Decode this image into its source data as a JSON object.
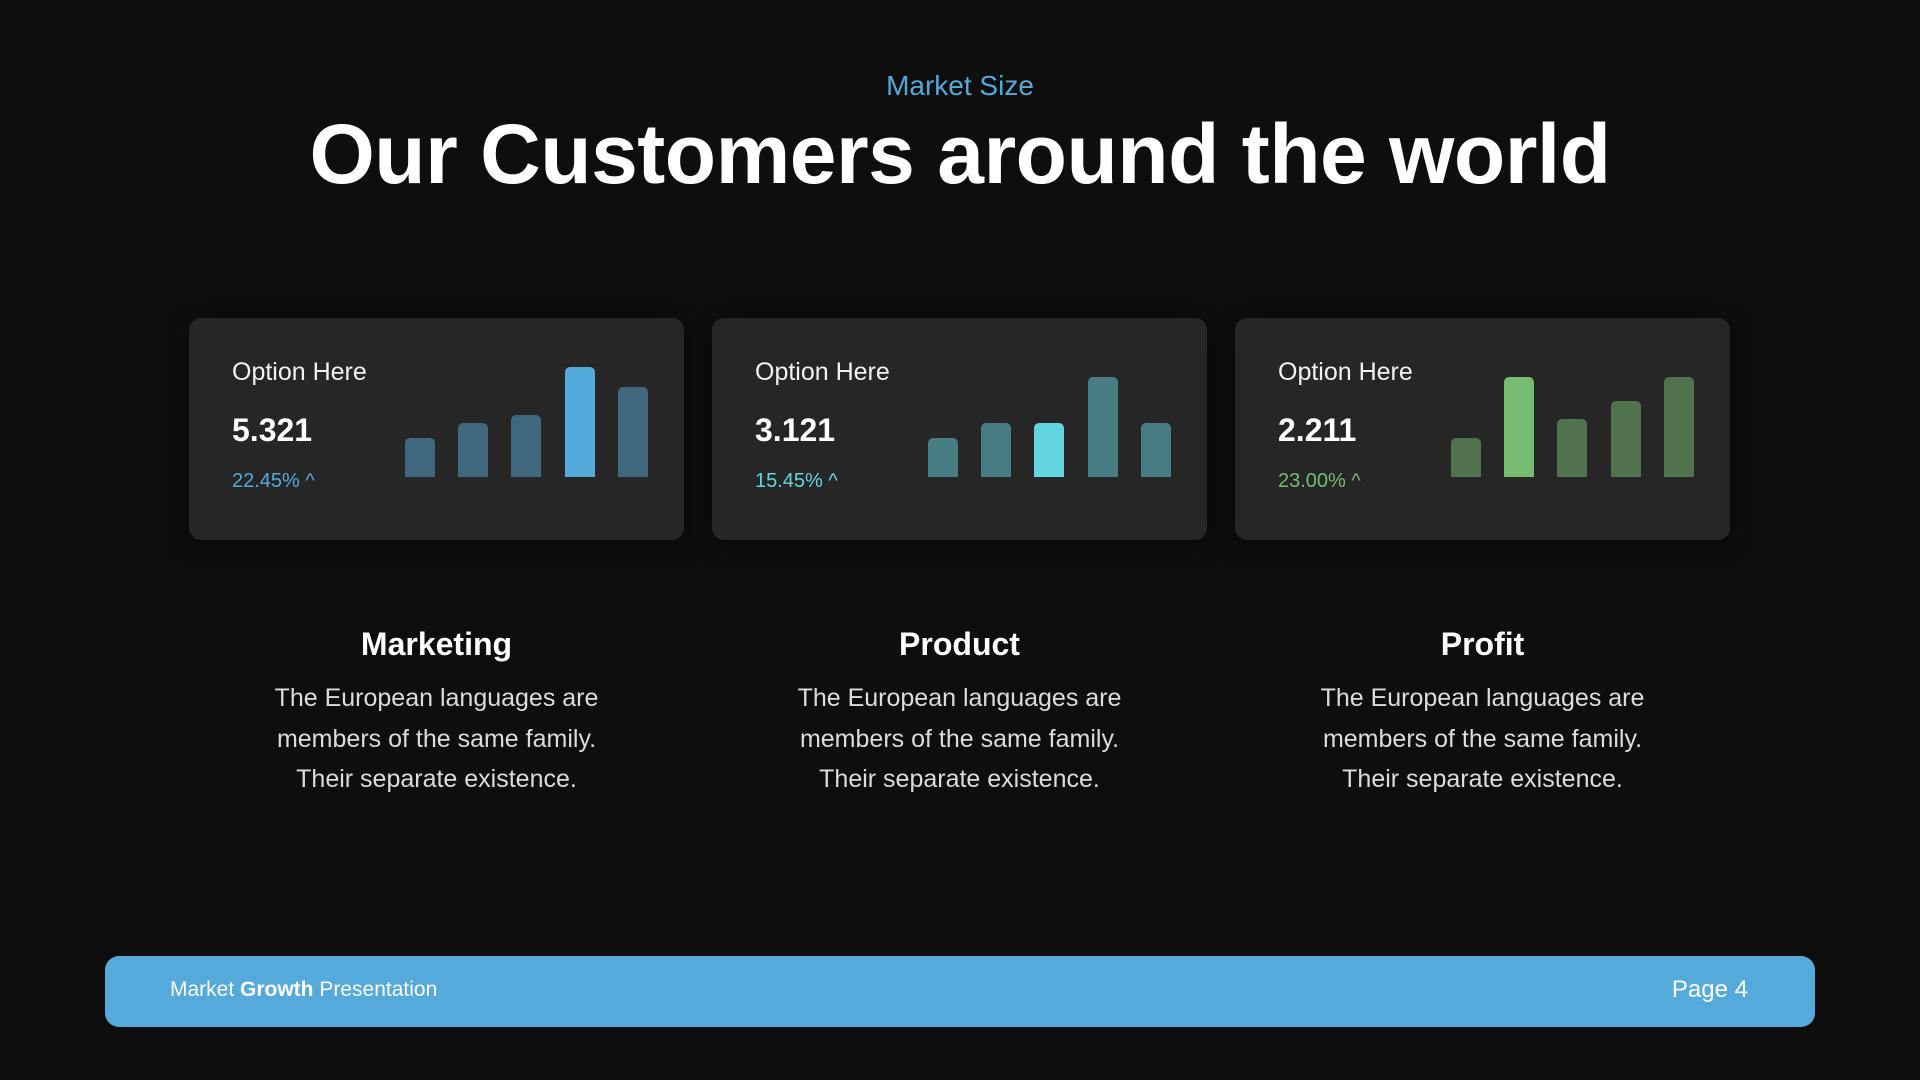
{
  "header": {
    "subtitle": "Market Size",
    "title": "Our Customers around the world"
  },
  "cards": [
    {
      "label": "Option Here",
      "value": "5.321",
      "change": "22.45% ^",
      "accent_color": "#54a9db",
      "dim_color": "#3f687f",
      "bars": [
        39,
        54,
        62,
        110,
        90
      ],
      "highlight_index": 3
    },
    {
      "label": "Option Here",
      "value": "3.121",
      "change": "15.45% ^",
      "accent_color": "#63d5e0",
      "dim_color": "#487e83",
      "bars": [
        39,
        54,
        54,
        100,
        54
      ],
      "highlight_index": 2
    },
    {
      "label": "Option Here",
      "value": "2.211",
      "change": "23.00% ^",
      "accent_color": "#75bb70",
      "dim_color": "#50724d",
      "bars": [
        39,
        100,
        58,
        76,
        100
      ],
      "highlight_index": 1
    }
  ],
  "columns": [
    {
      "heading": "Marketing",
      "lines": [
        "The European languages are",
        "members of the same family.",
        "Their separate existence."
      ]
    },
    {
      "heading": "Product",
      "lines": [
        "The European languages are",
        "members of the same family.",
        "Their separate existence."
      ]
    },
    {
      "heading": "Profit",
      "lines": [
        "The European languages are",
        "members of the same family.",
        "Their separate existence."
      ]
    }
  ],
  "footer": {
    "left_prefix": "Market ",
    "left_bold": "Growth",
    "left_suffix": " Presentation",
    "page": "Page 4",
    "color": "#55aadc"
  }
}
